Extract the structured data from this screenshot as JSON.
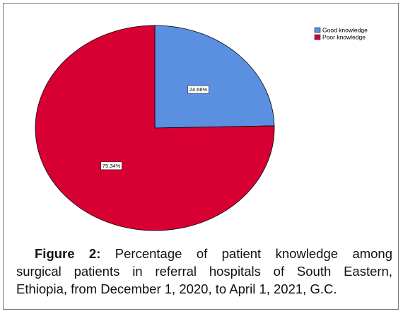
{
  "chart_data": {
    "type": "pie",
    "slices": [
      {
        "label": "Good knowledge",
        "value": 24.66,
        "display": "24.66%",
        "color": "#5b8fe0"
      },
      {
        "label": "Poor knowledge",
        "value": 75.34,
        "display": "75.34%",
        "color": "#d80033"
      }
    ],
    "legend_position": "top-right"
  },
  "caption": {
    "figure_label": "Figure 2:",
    "line1_rest": "Percentage of patient knowledge among",
    "line2": "surgical patients in referral hospitals of South Eastern,",
    "line3": "Ethiopia,  from December 1, 2020, to April 1, 2021, G.C."
  }
}
